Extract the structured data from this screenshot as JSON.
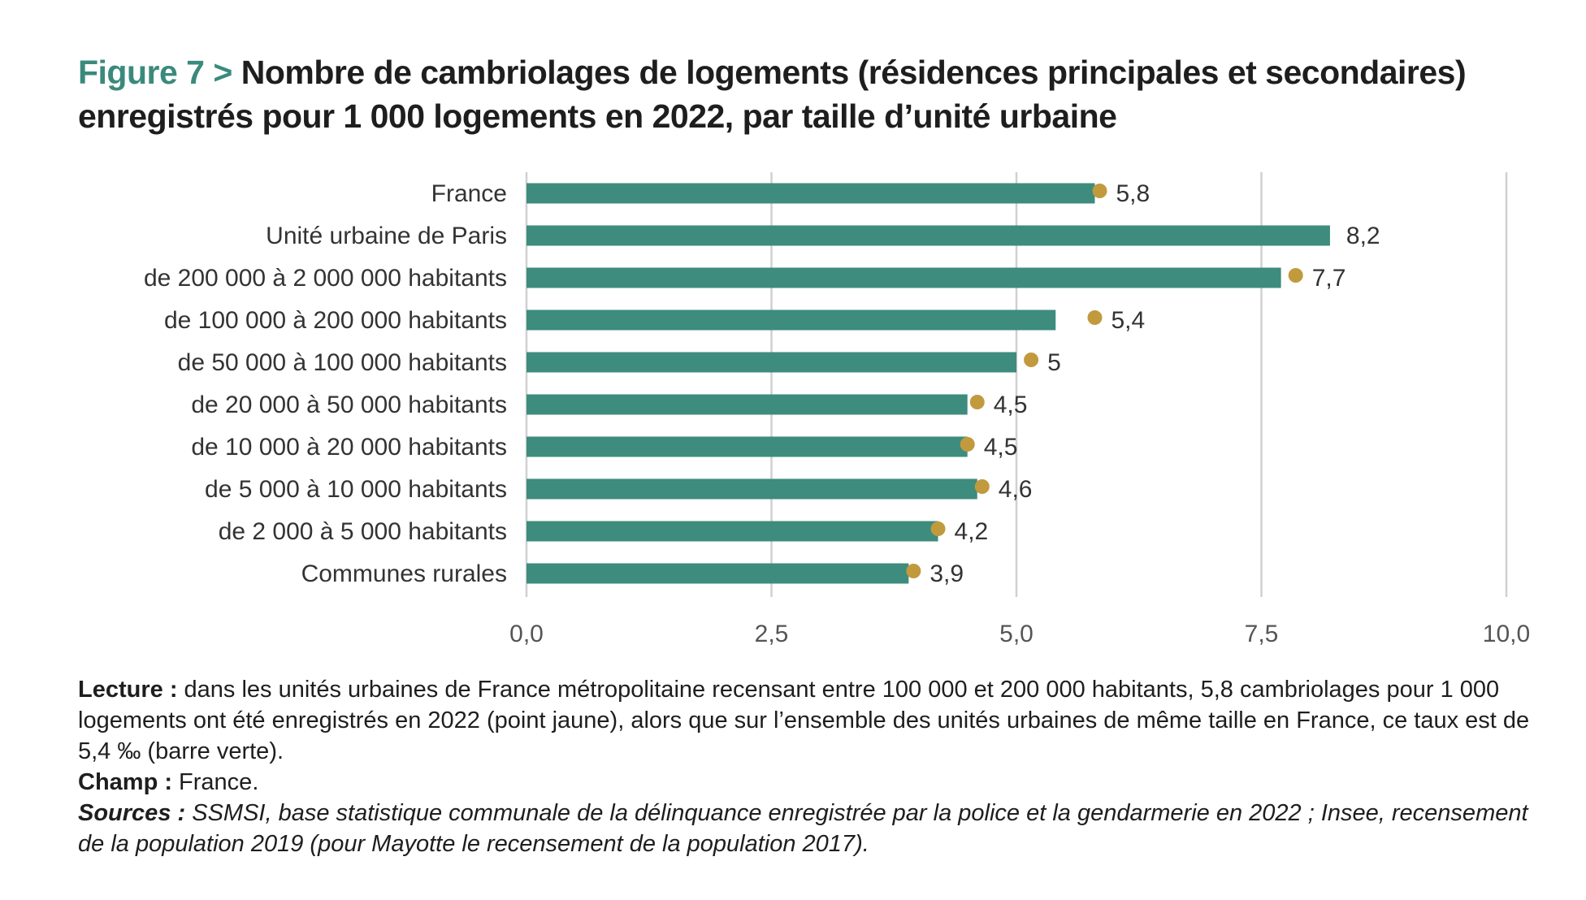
{
  "title": {
    "figure_label": "Figure 7 >",
    "text": "Nombre de cambriolages de logements (résidences principales et secondaires) enregistrés pour 1 000 logements en 2022, par taille d’unité urbaine"
  },
  "colors": {
    "bar": "#3d8c7d",
    "dot": "#c19a3e",
    "grid": "#d0d0d0",
    "title_accent": "#3a8a7c"
  },
  "chart_data": {
    "type": "bar",
    "orientation": "horizontal",
    "categories": [
      "France",
      "Unité urbaine de Paris",
      "de 200 000 à 2 000 000 habitants",
      "de 100 000 à 200 000 habitants",
      "de 50 000 à 100 000 habitants",
      "de 20 000 à 50 000 habitants",
      "de 10 000 à 20 000 habitants",
      "de 5 000 à 10 000 habitants",
      "de 2 000 à 5 000 habitants",
      "Communes rurales"
    ],
    "series": [
      {
        "values": [
          5.8,
          8.2,
          7.7,
          5.4,
          5.0,
          4.5,
          4.5,
          4.6,
          4.2,
          3.9
        ]
      },
      {
        "values": [
          5.85,
          null,
          7.85,
          5.8,
          5.15,
          4.6,
          4.5,
          4.65,
          4.2,
          3.95
        ]
      }
    ],
    "value_labels": [
      "5,8",
      "8,2",
      "7,7",
      "5,4",
      "5",
      "4,5",
      "4,5",
      "4,6",
      "4,2",
      "3,9"
    ],
    "xlim": [
      0,
      10
    ],
    "xticks": [
      0,
      2.5,
      5,
      7.5,
      10
    ],
    "xtick_labels": [
      "0,0",
      "2,5",
      "5,0",
      "7,5",
      "10,0"
    ],
    "grid": true,
    "xlabel": "",
    "ylabel": ""
  },
  "notes": {
    "lecture_label": "Lecture :",
    "lecture_text": " dans les unités urbaines de France métropolitaine recensant entre 100 000 et 200 000 habitants, 5,8 cambriolages pour 1 000 logements ont été enregistrés en 2022 (point jaune), alors que sur l’ensemble des unités urbaines de même taille en France, ce taux est de 5,4 ‰ (barre verte).",
    "champ_label": "Champ :",
    "champ_text": " France.",
    "sources_label": "Sources :",
    "sources_text": " SSMSI, base statistique communale de la délinquance enregistrée par la police et la gendarmerie en 2022 ; Insee, recensement de la population 2019 (pour Mayotte le recensement de la population 2017)."
  }
}
